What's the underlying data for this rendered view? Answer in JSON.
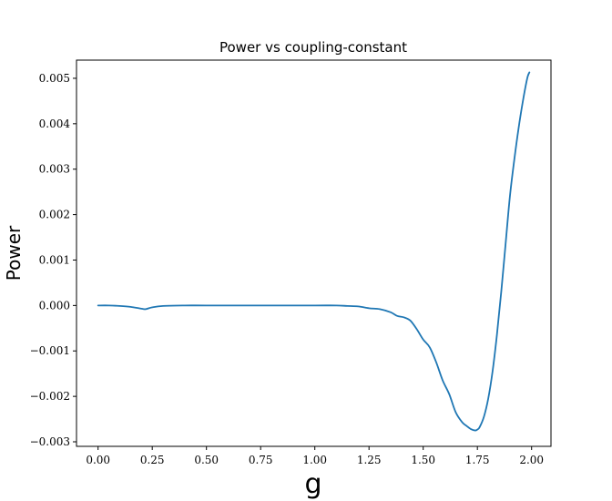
{
  "chart_data": {
    "type": "line",
    "title": "Power vs coupling-constant",
    "xlabel": "g",
    "ylabel": "Power",
    "xlim": [
      -0.0995,
      2.0895
    ],
    "ylim": [
      -0.0031,
      0.0054
    ],
    "xticks": [
      0.0,
      0.25,
      0.5,
      0.75,
      1.0,
      1.25,
      1.5,
      1.75,
      2.0
    ],
    "xtick_labels": [
      "0.00",
      "0.25",
      "0.50",
      "0.75",
      "1.00",
      "1.25",
      "1.50",
      "1.75",
      "2.00"
    ],
    "yticks": [
      -0.003,
      -0.002,
      -0.001,
      0.0,
      0.001,
      0.002,
      0.003,
      0.004,
      0.005
    ],
    "ytick_labels": [
      "−0.003",
      "−0.002",
      "−0.001",
      "0.000",
      "0.001",
      "0.002",
      "0.003",
      "0.004",
      "0.005"
    ],
    "grid": false,
    "line_color": "#1f77b4",
    "series": [
      {
        "x": [
          0.0,
          0.05,
          0.1,
          0.15,
          0.2,
          0.22,
          0.25,
          0.3,
          0.4,
          0.5,
          0.75,
          1.0,
          1.1,
          1.15,
          1.2,
          1.25,
          1.3,
          1.35,
          1.38,
          1.41,
          1.44,
          1.47,
          1.5,
          1.53,
          1.56,
          1.59,
          1.62,
          1.65,
          1.68,
          1.7,
          1.72,
          1.74,
          1.75,
          1.76,
          1.78,
          1.8,
          1.82,
          1.84,
          1.86,
          1.88,
          1.9,
          1.92,
          1.94,
          1.96,
          1.98,
          1.99
        ],
        "y": [
          0.0,
          0.0,
          -1e-05,
          -3e-05,
          -7e-05,
          -8e-05,
          -4e-05,
          -1e-05,
          0.0,
          0.0,
          0.0,
          0.0,
          0.0,
          -1e-05,
          -2e-05,
          -6e-05,
          -8e-05,
          -0.00015,
          -0.00023,
          -0.00026,
          -0.00033,
          -0.00052,
          -0.00075,
          -0.00092,
          -0.00125,
          -0.00165,
          -0.00195,
          -0.00235,
          -0.00257,
          -0.00265,
          -0.00272,
          -0.00275,
          -0.00273,
          -0.00268,
          -0.00245,
          -0.00205,
          -0.00145,
          -0.00065,
          0.0003,
          0.00135,
          0.0024,
          0.0032,
          0.0039,
          0.0045,
          0.005,
          0.00513
        ]
      }
    ]
  }
}
